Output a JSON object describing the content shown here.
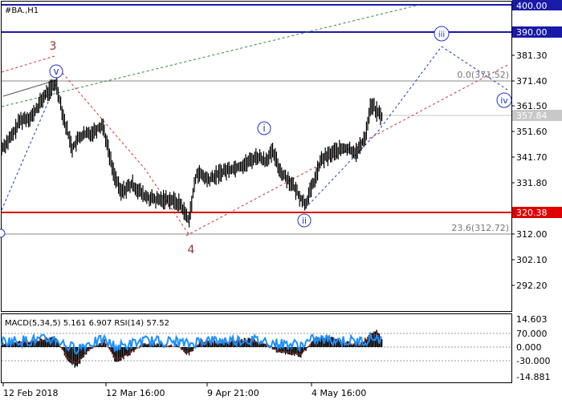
{
  "header": {
    "symbol": "#BA.,H1"
  },
  "price_axis": {
    "ticks": [
      "381.30",
      "371.40",
      "361.50",
      "351.60",
      "341.70",
      "331.80",
      "312.00",
      "302.10",
      "292.20"
    ],
    "badges": [
      {
        "value": "400.00",
        "bg": "#1a1aa8",
        "fg": "#ffffff"
      },
      {
        "value": "390.00",
        "bg": "#1a1aa8",
        "fg": "#ffffff"
      },
      {
        "value": "357.84",
        "bg": "#c8c8c8",
        "fg": "#ffffff"
      },
      {
        "value": "320.38",
        "bg": "#e00000",
        "fg": "#ffffff"
      }
    ]
  },
  "fibonacci": {
    "level_top": "0.0(371.52)",
    "level_bottom": "23.6(312.72)"
  },
  "wave_labels": {
    "wave3": "3",
    "wave4": "4",
    "v": "v",
    "i": "i",
    "ii": "ii",
    "iii": "iii",
    "iv": "iv"
  },
  "indicator": {
    "label": "MACD(5,34,5) 5.161 6.907 RSI(14) 57.52",
    "ticks": [
      "14.603",
      "70.000",
      "0.000",
      "-30.000",
      "-14.881"
    ]
  },
  "time_axis": {
    "labels": [
      "12 Feb 2018",
      "12 Mar 16:00",
      "9 Apr 21:00",
      "4 May 16:00"
    ]
  },
  "colors": {
    "blue_line": "#1a1aa8",
    "red_line": "#e00000",
    "wave_blue": "#2233cc",
    "wave_red": "#a03030",
    "grid_gray": "#888888",
    "macd_line": "#1e90ff"
  }
}
